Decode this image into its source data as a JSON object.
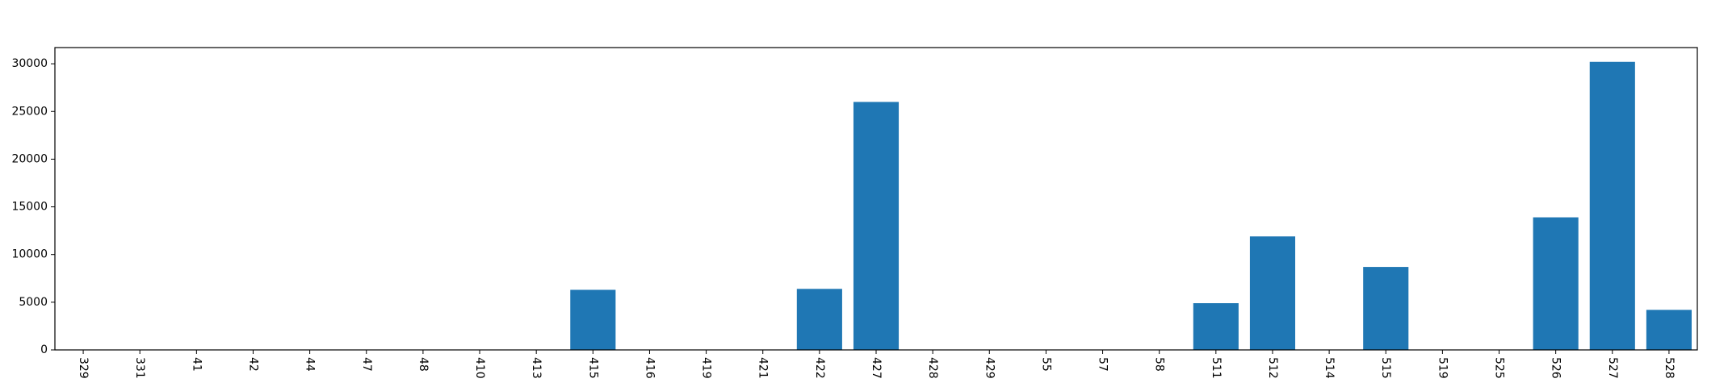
{
  "chart_data": {
    "type": "bar",
    "title": "",
    "xlabel": "",
    "ylabel": "",
    "categories": [
      "329",
      "331",
      "41",
      "42",
      "44",
      "47",
      "48",
      "410",
      "413",
      "415",
      "416",
      "419",
      "421",
      "422",
      "427",
      "428",
      "429",
      "55",
      "57",
      "58",
      "511",
      "512",
      "514",
      "515",
      "519",
      "525",
      "526",
      "527",
      "528"
    ],
    "values": [
      0,
      0,
      0,
      0,
      0,
      0,
      0,
      0,
      0,
      6300,
      0,
      0,
      0,
      6400,
      26000,
      0,
      0,
      0,
      0,
      0,
      4900,
      11900,
      0,
      8700,
      0,
      0,
      13900,
      30200,
      4200
    ],
    "ylim": [
      0,
      31700
    ],
    "yticks": [
      0,
      5000,
      10000,
      15000,
      20000,
      25000,
      30000
    ],
    "grid": false,
    "legend": "none",
    "bar_color": "#1f77b4"
  }
}
